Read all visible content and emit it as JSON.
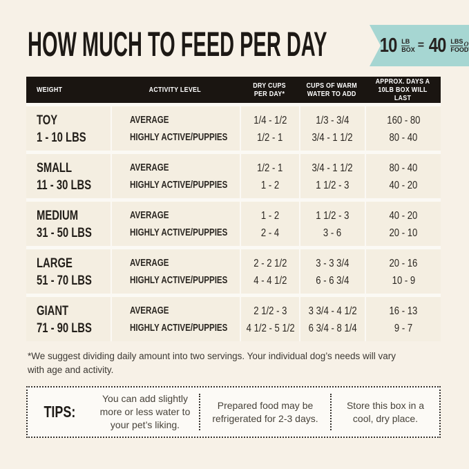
{
  "title": "HOW MUCH TO FEED PER DAY",
  "badge": {
    "qty_box": "10",
    "box_unit_top": "LB",
    "box_unit_bottom": "BOX",
    "equals": "=",
    "qty_food": "40",
    "food_unit_top": "LBS",
    "food_unit_script": "of",
    "food_unit_bottom": "FOOD!"
  },
  "chart_data": {
    "type": "table",
    "columns": [
      "WEIGHT",
      "ACTIVITY LEVEL",
      "DRY CUPS\nPER DAY*",
      "CUPS OF WARM\nWATER TO ADD",
      "APPROX. DAYS A\n10LB BOX WILL LAST"
    ],
    "rows": [
      {
        "size": "TOY",
        "range": "1 - 10 LBS",
        "activity": [
          "AVERAGE",
          "HIGHLY ACTIVE/PUPPIES"
        ],
        "dry_cups": [
          "1/4 - 1/2",
          "1/2 - 1"
        ],
        "water": [
          "1/3 - 3/4",
          "3/4 - 1 1/2"
        ],
        "days": [
          "160 - 80",
          "80 - 40"
        ]
      },
      {
        "size": "SMALL",
        "range": "11 - 30 LBS",
        "activity": [
          "AVERAGE",
          "HIGHLY ACTIVE/PUPPIES"
        ],
        "dry_cups": [
          "1/2 - 1",
          "1 - 2"
        ],
        "water": [
          "3/4 - 1 1/2",
          "1 1/2 - 3"
        ],
        "days": [
          "80 - 40",
          "40 - 20"
        ]
      },
      {
        "size": "MEDIUM",
        "range": "31 - 50 LBS",
        "activity": [
          "AVERAGE",
          "HIGHLY ACTIVE/PUPPIES"
        ],
        "dry_cups": [
          "1 - 2",
          "2 - 4"
        ],
        "water": [
          "1 1/2 - 3",
          "3 - 6"
        ],
        "days": [
          "40 - 20",
          "20 - 10"
        ]
      },
      {
        "size": "LARGE",
        "range": "51 - 70 LBS",
        "activity": [
          "AVERAGE",
          "HIGHLY ACTIVE/PUPPIES"
        ],
        "dry_cups": [
          "2 - 2 1/2",
          "4 - 4 1/2"
        ],
        "water": [
          "3 - 3 3/4",
          "6 - 6 3/4"
        ],
        "days": [
          "20 - 16",
          "10 - 9"
        ]
      },
      {
        "size": "GIANT",
        "range": "71 - 90 LBS",
        "activity": [
          "AVERAGE",
          "HIGHLY ACTIVE/PUPPIES"
        ],
        "dry_cups": [
          "2 1/2 - 3",
          "4 1/2 - 5 1/2"
        ],
        "water": [
          "3 3/4 - 4 1/2",
          "6 3/4 - 8 1/4"
        ],
        "days": [
          "16 - 13",
          "9 - 7"
        ]
      }
    ]
  },
  "footnote": "*We suggest dividing daily amount into two servings. Your individual dog’s needs will vary\nwith age and activity.",
  "tips": {
    "label": "TIPS:",
    "items": [
      "You can add slightly more or less water to your pet’s liking.",
      "Prepared food may be refrigerated for 2-3 days.",
      "Store this box in a cool, dry place."
    ]
  },
  "colors": {
    "background": "#f7f1e7",
    "row_background": "#f4eee1",
    "header_background": "#1a1511",
    "badge_teal": "#a6d6d2",
    "text_dark": "#221e19"
  }
}
